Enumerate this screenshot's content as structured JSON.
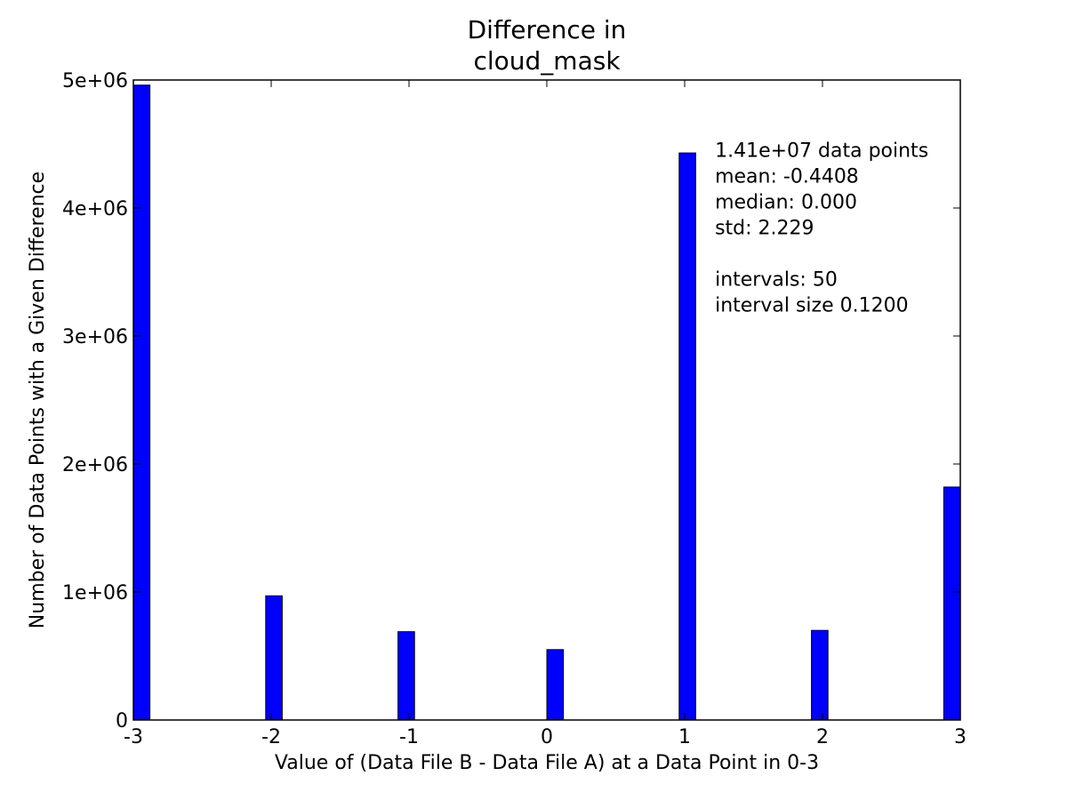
{
  "chart_data": {
    "type": "bar",
    "title_lines": [
      "Difference in",
      "cloud_mask"
    ],
    "xlabel": "Value of (Data File B - Data File A) at a Data Point in 0-3",
    "ylabel": "Number of Data Points with a Given Difference",
    "xlim": [
      -3,
      3
    ],
    "ylim": [
      0,
      5000000
    ],
    "bar_width": 0.12,
    "bar_color": "#0000ff",
    "x_ticks": [
      {
        "value": -3,
        "label": "-3"
      },
      {
        "value": -2,
        "label": "-2"
      },
      {
        "value": -1,
        "label": "-1"
      },
      {
        "value": 0,
        "label": "0"
      },
      {
        "value": 1,
        "label": "1"
      },
      {
        "value": 2,
        "label": "2"
      },
      {
        "value": 3,
        "label": "3"
      }
    ],
    "y_ticks": [
      {
        "value": 0,
        "label": "0"
      },
      {
        "value": 1000000,
        "label": "1e+06"
      },
      {
        "value": 2000000,
        "label": "2e+06"
      },
      {
        "value": 3000000,
        "label": "3e+06"
      },
      {
        "value": 4000000,
        "label": "4e+06"
      },
      {
        "value": 5000000,
        "label": "5e+06"
      }
    ],
    "bars": [
      {
        "x_start": -3.0,
        "value": 4960000
      },
      {
        "x_start": -2.04,
        "value": 970000
      },
      {
        "x_start": -1.08,
        "value": 690000
      },
      {
        "x_start": 0.0,
        "value": 550000
      },
      {
        "x_start": 0.96,
        "value": 4430000
      },
      {
        "x_start": 1.92,
        "value": 700000
      },
      {
        "x_start": 2.88,
        "value": 1820000
      }
    ],
    "stats_text": [
      "1.41e+07 data points",
      "mean: -0.4408",
      "median: 0.000",
      "std: 2.229",
      "",
      "intervals: 50",
      "interval size 0.1200"
    ],
    "stats_anchor": {
      "x": 1.22,
      "y": 4400000
    },
    "grid": false,
    "legend": "none"
  }
}
